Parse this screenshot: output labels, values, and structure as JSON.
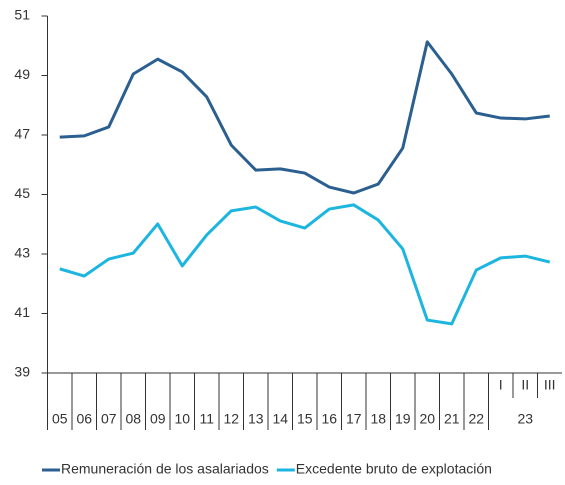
{
  "chart_data": {
    "type": "line",
    "categories": [
      "05",
      "06",
      "07",
      "08",
      "09",
      "10",
      "11",
      "12",
      "13",
      "14",
      "15",
      "16",
      "17",
      "18",
      "19",
      "20",
      "21",
      "22",
      "I",
      "II",
      "III"
    ],
    "group_label": "23",
    "series": [
      {
        "name": "Remuneración de los asalariados",
        "color": "#2a5f8f",
        "values": [
          46.93,
          46.97,
          47.27,
          49.05,
          49.55,
          49.12,
          48.28,
          46.66,
          45.82,
          45.86,
          45.72,
          45.25,
          45.05,
          45.35,
          46.56,
          50.13,
          49.05,
          47.74,
          47.57,
          47.54,
          47.64
        ]
      },
      {
        "name": "Excedente bruto de explotación",
        "color": "#1cb5e0",
        "values": [
          42.5,
          42.26,
          42.83,
          43.03,
          44.01,
          42.6,
          43.64,
          44.45,
          44.58,
          44.11,
          43.87,
          44.51,
          44.65,
          44.14,
          43.17,
          40.78,
          40.65,
          42.46,
          42.87,
          42.93,
          42.73
        ]
      }
    ],
    "ylim": [
      39,
      51
    ],
    "yticks": [
      39,
      41,
      43,
      45,
      47,
      49,
      51
    ],
    "legend": "bottom"
  }
}
